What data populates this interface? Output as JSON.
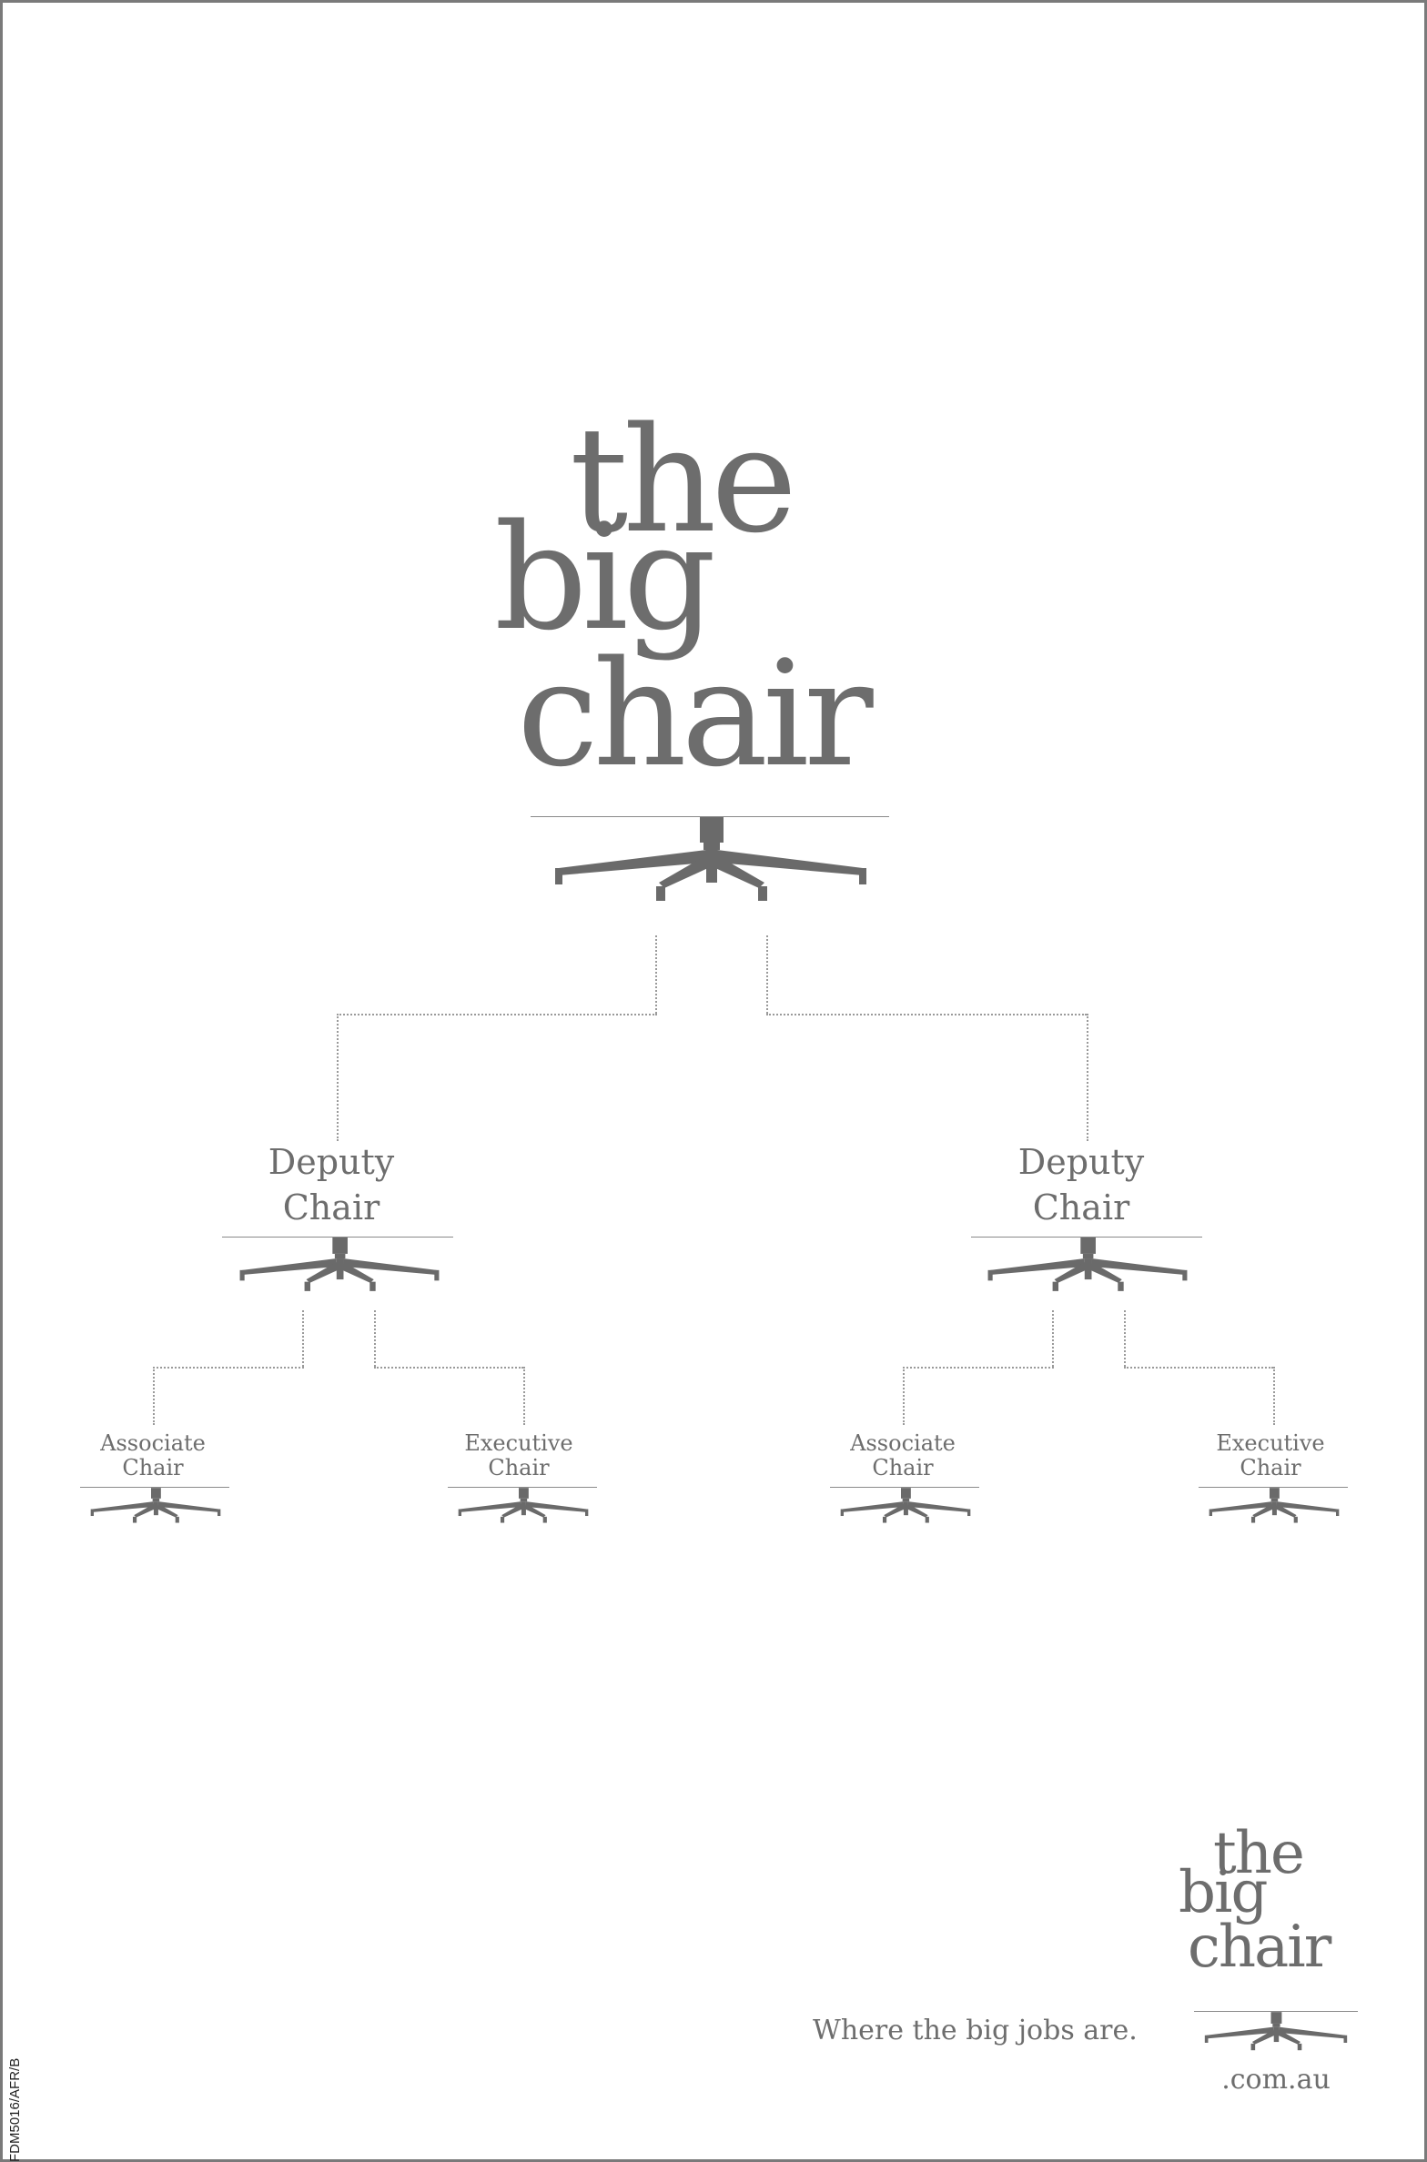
{
  "main_logo": {
    "line1": "the",
    "line2": "big",
    "line3": "chair"
  },
  "tier2": {
    "left": {
      "line1": "Deputy",
      "line2": "Chair"
    },
    "right": {
      "line1": "Deputy",
      "line2": "Chair"
    }
  },
  "tier3": {
    "left_associate": {
      "line1": "Associate",
      "line2": "Chair"
    },
    "left_executive": {
      "line1": "Executive",
      "line2": "Chair"
    },
    "right_associate": {
      "line1": "Associate",
      "line2": "Chair"
    },
    "right_executive": {
      "line1": "Executive",
      "line2": "Chair"
    }
  },
  "footer": {
    "tagline": "Where the big jobs are.",
    "logo_line1": "the",
    "logo_line2": "big",
    "logo_line3": "chair",
    "domain": ".com.au"
  },
  "side_code": "FDM5016/AFR/B",
  "colors": {
    "text_gray": "#6d6d6d",
    "chair_gray": "#6a6a6a",
    "frame": "#7a7a7a"
  },
  "icons": [
    "chair-base-icon"
  ]
}
